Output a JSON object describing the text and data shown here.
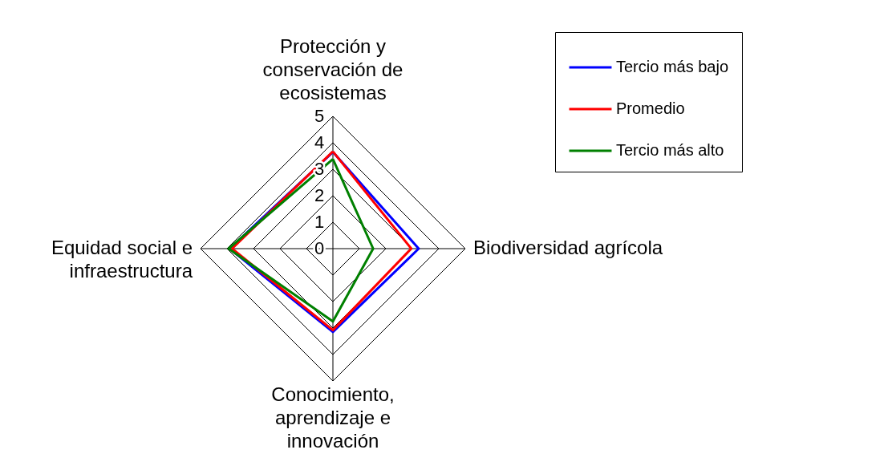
{
  "chart_data": {
    "type": "radar",
    "categories": [
      "Protección y\nconservación de\necosistemas",
      "Biodiversidad agrícola",
      "Conocimiento,\naprendizaje e\ninnovación",
      "Equidad social e\ninfraestructura"
    ],
    "series": [
      {
        "name": "Tercio más bajo",
        "color": "#0000ff",
        "values": [
          3.65,
          3.24,
          3.15,
          3.9
        ]
      },
      {
        "name": "Promedio",
        "color": "#ff0000",
        "values": [
          3.67,
          2.96,
          3.08,
          3.81
        ]
      },
      {
        "name": "Tercio más alto",
        "color": "#008000",
        "values": [
          3.38,
          1.52,
          2.75,
          3.94
        ]
      }
    ],
    "ylim": [
      0,
      5
    ],
    "yticks": [
      0,
      1,
      2,
      3,
      4,
      5
    ],
    "grid": true,
    "legend": "top right"
  }
}
